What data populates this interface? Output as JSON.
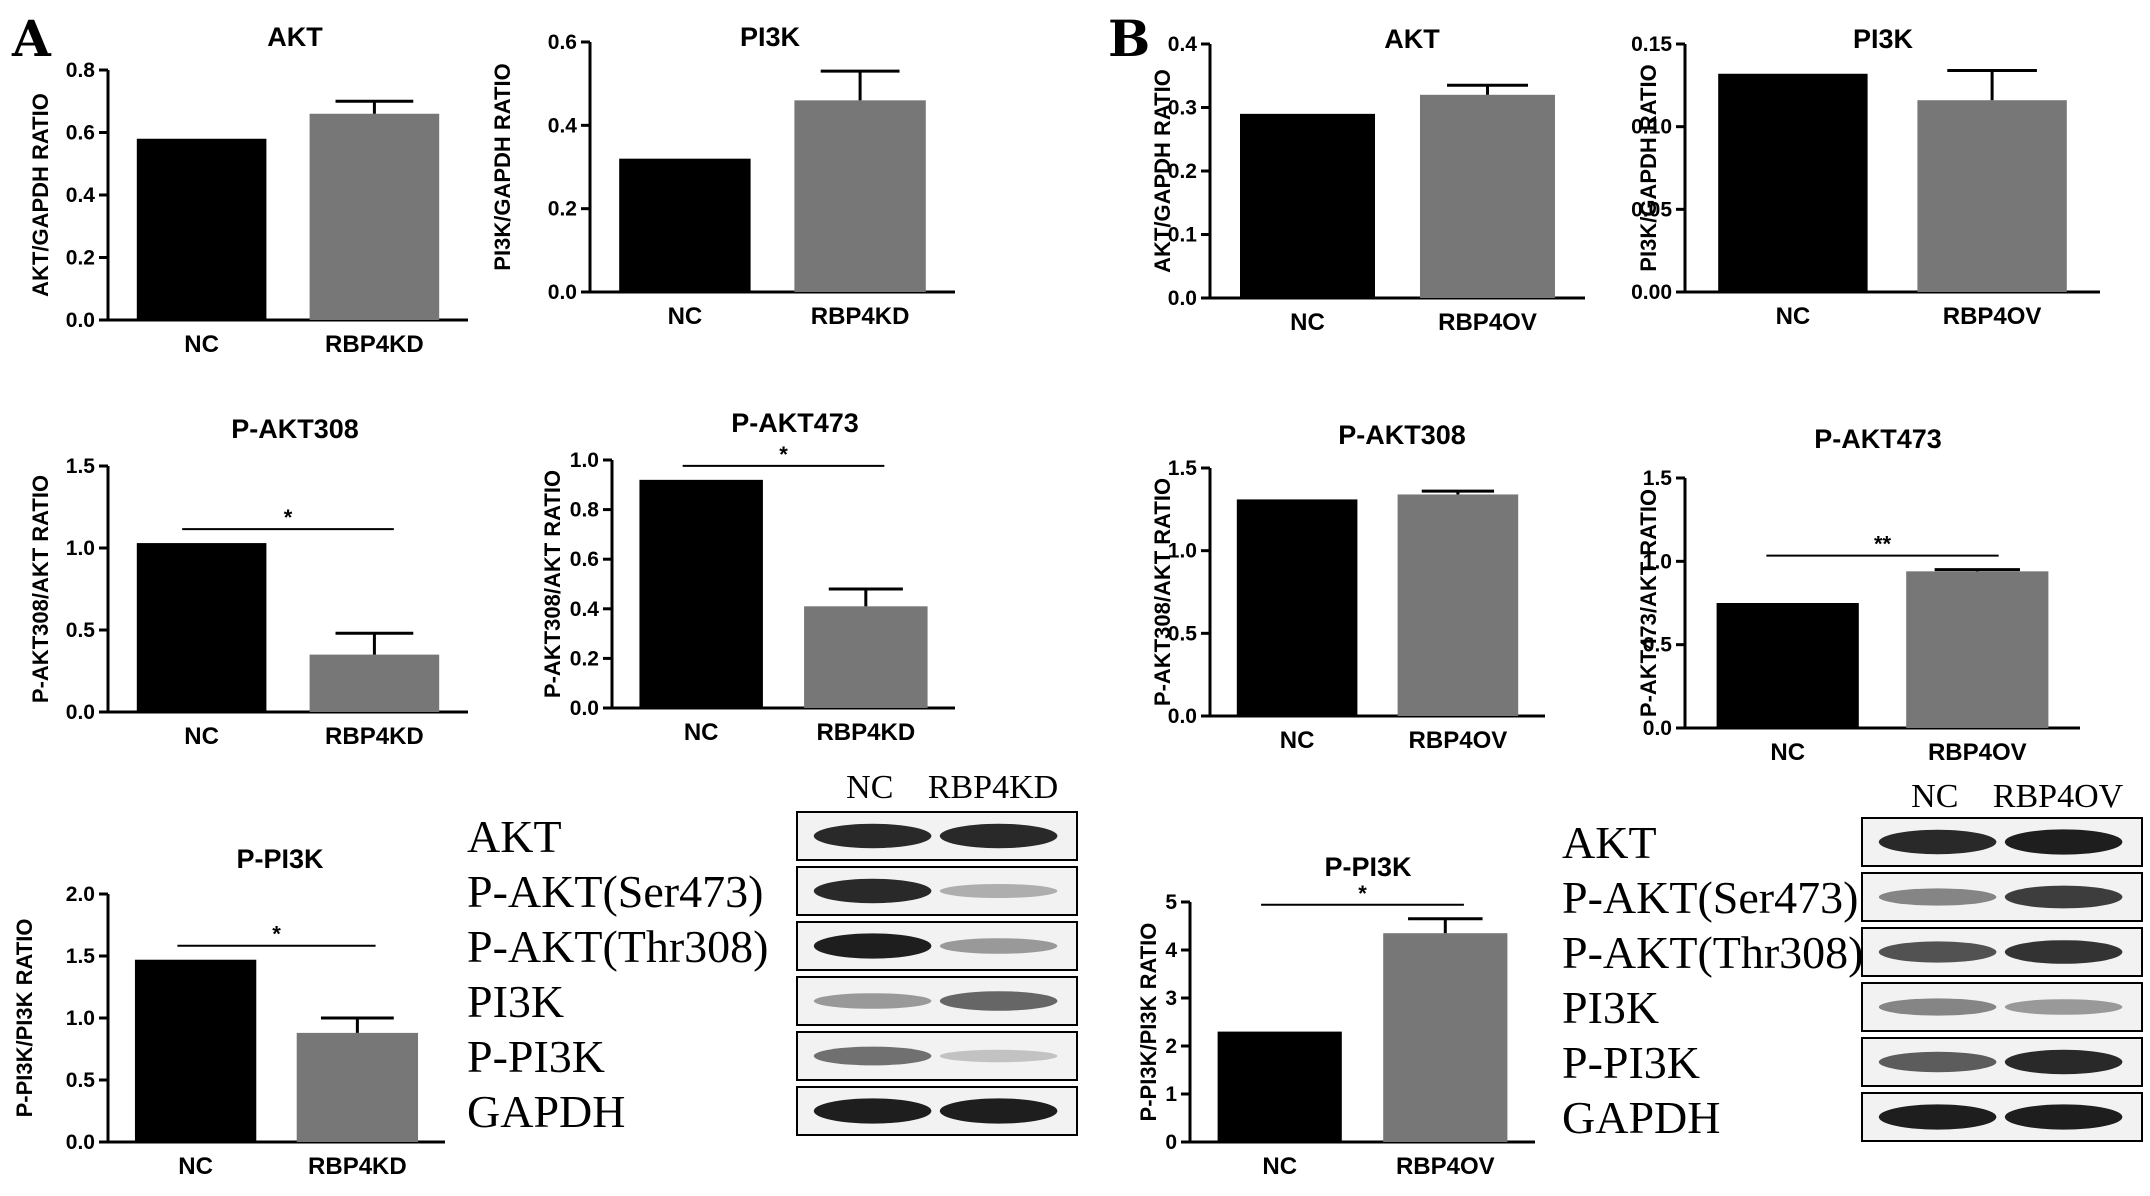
{
  "panels": [
    {
      "letter": "A"
    },
    {
      "letter": "B"
    }
  ],
  "chart_data": [
    {
      "type": "bar",
      "title": "AKT",
      "ylabel": "AKT/GAPDH RATIO",
      "categories": [
        "NC",
        "RBP4KD"
      ],
      "values": [
        0.58,
        0.66
      ],
      "errors": [
        0,
        0.04
      ],
      "ylim": [
        0,
        0.8
      ],
      "yticks": [
        "0.0",
        "0.2",
        "0.4",
        "0.6",
        "0.8"
      ],
      "colors": [
        "#000000",
        "#777777"
      ],
      "significance": ""
    },
    {
      "type": "bar",
      "title": "PI3K",
      "ylabel": "PI3K/GAPDH RATIO",
      "categories": [
        "NC",
        "RBP4KD"
      ],
      "values": [
        0.32,
        0.46
      ],
      "errors": [
        0,
        0.07
      ],
      "ylim": [
        0,
        0.6
      ],
      "yticks": [
        "0.0",
        "0.2",
        "0.4",
        "0.6"
      ],
      "colors": [
        "#000000",
        "#777777"
      ],
      "significance": ""
    },
    {
      "type": "bar",
      "title": "P-AKT308",
      "ylabel": "P-AKT308/AKT  RATIO",
      "categories": [
        "NC",
        "RBP4KD"
      ],
      "values": [
        1.03,
        0.35
      ],
      "errors": [
        0,
        0.13
      ],
      "ylim": [
        0,
        1.5
      ],
      "yticks": [
        "0.0",
        "0.5",
        "1.0",
        "1.5"
      ],
      "colors": [
        "#000000",
        "#777777"
      ],
      "significance": "*"
    },
    {
      "type": "bar",
      "title": "P-AKT473",
      "ylabel": "P-AKT308/AKT  RATIO",
      "categories": [
        "NC",
        "RBP4KD"
      ],
      "values": [
        0.92,
        0.41
      ],
      "errors": [
        0,
        0.07
      ],
      "ylim": [
        0,
        1.0
      ],
      "yticks": [
        "0.0",
        "0.2",
        "0.4",
        "0.6",
        "0.8",
        "1.0"
      ],
      "colors": [
        "#000000",
        "#777777"
      ],
      "significance": "*"
    },
    {
      "type": "bar",
      "title": "P-PI3K",
      "ylabel": "P-PI3K/PI3K RATIO",
      "categories": [
        "NC",
        "RBP4KD"
      ],
      "values": [
        1.47,
        0.88
      ],
      "errors": [
        0,
        0.12
      ],
      "ylim": [
        0,
        2.0
      ],
      "yticks": [
        "0.0",
        "0.5",
        "1.0",
        "1.5",
        "2.0"
      ],
      "colors": [
        "#000000",
        "#777777"
      ],
      "significance": "*"
    },
    {
      "type": "bar",
      "title": "AKT",
      "ylabel": "AKT/GAPDH RATIO",
      "categories": [
        "NC",
        "RBP4OV"
      ],
      "values": [
        0.29,
        0.32
      ],
      "errors": [
        0,
        0.015
      ],
      "ylim": [
        0,
        0.4
      ],
      "yticks": [
        "0.0",
        "0.1",
        "0.2",
        "0.3",
        "0.4"
      ],
      "colors": [
        "#000000",
        "#777777"
      ],
      "significance": ""
    },
    {
      "type": "bar",
      "title": "PI3K",
      "ylabel": "PI3K/GAPDH RATIO",
      "categories": [
        "NC",
        "RBP4OV"
      ],
      "values": [
        0.132,
        0.116
      ],
      "errors": [
        0,
        0.018
      ],
      "ylim": [
        0,
        0.15
      ],
      "yticks": [
        "0.00",
        "0.05",
        "0.10",
        "0.15"
      ],
      "colors": [
        "#000000",
        "#777777"
      ],
      "significance": ""
    },
    {
      "type": "bar",
      "title": "P-AKT308",
      "ylabel": "P-AKT308/AKT  RATIO",
      "categories": [
        "NC",
        "RBP4OV"
      ],
      "values": [
        1.31,
        1.34
      ],
      "errors": [
        0,
        0.02
      ],
      "ylim": [
        0,
        1.5
      ],
      "yticks": [
        "0.0",
        "0.5",
        "1.0",
        "1.5"
      ],
      "colors": [
        "#000000",
        "#777777"
      ],
      "significance": ""
    },
    {
      "type": "bar",
      "title": "P-AKT473",
      "ylabel": "P-AKT473/AKT RATIO",
      "categories": [
        "NC",
        "RBP4OV"
      ],
      "values": [
        0.75,
        0.94
      ],
      "errors": [
        0,
        0.01
      ],
      "ylim": [
        0,
        1.5
      ],
      "yticks": [
        "0.0",
        "0.5",
        "1.0",
        "1.5"
      ],
      "colors": [
        "#000000",
        "#777777"
      ],
      "significance": "**"
    },
    {
      "type": "bar",
      "title": "P-PI3K",
      "ylabel": "P-PI3K/PI3K RATIO",
      "categories": [
        "NC",
        "RBP4OV"
      ],
      "values": [
        2.3,
        4.35
      ],
      "errors": [
        0,
        0.3
      ],
      "ylim": [
        0,
        5
      ],
      "yticks": [
        "0",
        "1",
        "2",
        "3",
        "4",
        "5"
      ],
      "colors": [
        "#000000",
        "#777777"
      ],
      "significance": "*"
    }
  ],
  "blots": [
    {
      "lanes": [
        "NC",
        "RBP4KD"
      ],
      "rows": [
        {
          "label": "AKT",
          "intensity": [
            0.9,
            0.9
          ]
        },
        {
          "label": "P-AKT(Ser473)",
          "intensity": [
            0.9,
            0.25
          ]
        },
        {
          "label": "P-AKT(Thr308)",
          "intensity": [
            0.95,
            0.35
          ]
        },
        {
          "label": "PI3K",
          "intensity": [
            0.35,
            0.6
          ]
        },
        {
          "label": "P-PI3K",
          "intensity": [
            0.55,
            0.15
          ]
        },
        {
          "label": "GAPDH",
          "intensity": [
            0.95,
            0.95
          ]
        }
      ]
    },
    {
      "lanes": [
        "NC",
        "RBP4OV"
      ],
      "rows": [
        {
          "label": "AKT",
          "intensity": [
            0.9,
            0.95
          ]
        },
        {
          "label": "P-AKT(Ser473)",
          "intensity": [
            0.45,
            0.8
          ]
        },
        {
          "label": "P-AKT(Thr308)",
          "intensity": [
            0.7,
            0.85
          ]
        },
        {
          "label": "PI3K",
          "intensity": [
            0.45,
            0.35
          ]
        },
        {
          "label": "P-PI3K",
          "intensity": [
            0.65,
            0.9
          ]
        },
        {
          "label": "GAPDH",
          "intensity": [
            0.95,
            0.95
          ]
        }
      ]
    }
  ]
}
